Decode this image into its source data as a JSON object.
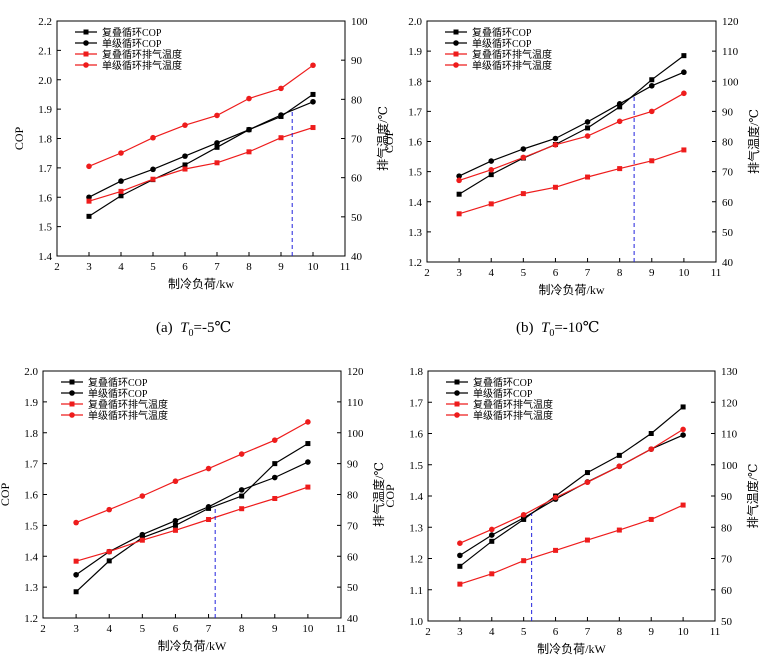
{
  "colors": {
    "black": "#000000",
    "red": "#ee1c1c",
    "guide": "#2222dd"
  },
  "captions": [
    {
      "prefix": "(a)",
      "var": "T",
      "sub": "0",
      "value": "=-5℃"
    },
    {
      "prefix": "(b)",
      "var": "T",
      "sub": "0",
      "value": "=-10℃"
    }
  ],
  "chart_data": [
    {
      "type": "line",
      "xlabel": "制冷负荷/kw",
      "ylabel": "COP",
      "y2label": "排气温度/℃",
      "xlim": [
        2,
        11
      ],
      "ylim": [
        1.4,
        2.2
      ],
      "y2lim": [
        40,
        100
      ],
      "xticks": [
        "2",
        "3",
        "4",
        "5",
        "6",
        "7",
        "8",
        "9",
        "10",
        "11"
      ],
      "yticks": [
        "1.4",
        "1.5",
        "1.6",
        "1.7",
        "1.8",
        "1.9",
        "2.0",
        "2.1",
        "2.2"
      ],
      "y2ticks": [
        "40",
        "50",
        "60",
        "70",
        "80",
        "90",
        "100"
      ],
      "legend_position": "top-left",
      "vline_x": 9.35,
      "x": [
        3,
        4,
        5,
        6,
        7,
        8,
        9,
        10
      ],
      "series": [
        {
          "name": "复叠循环COP",
          "axis": "left",
          "color": "black",
          "marker": "square",
          "values": [
            1.535,
            1.605,
            1.66,
            1.71,
            1.77,
            1.83,
            1.875,
            1.95
          ]
        },
        {
          "name": "单级循环COP",
          "axis": "left",
          "color": "black",
          "marker": "circle",
          "values": [
            1.6,
            1.655,
            1.695,
            1.74,
            1.785,
            1.83,
            1.88,
            1.925
          ]
        },
        {
          "name": "复叠循环排气温度",
          "axis": "right",
          "color": "red",
          "marker": "square",
          "values": [
            54,
            56.5,
            59.6,
            62.2,
            63.8,
            66.6,
            70.2,
            72.8
          ]
        },
        {
          "name": "单级循环排气温度",
          "axis": "right",
          "color": "red",
          "marker": "circle",
          "values": [
            62.9,
            66.3,
            70.2,
            73.4,
            75.9,
            80.2,
            82.8,
            88.7
          ]
        }
      ]
    },
    {
      "type": "line",
      "xlabel": "制冷负荷/kw",
      "ylabel": "COP",
      "y2label": "排气温度/℃",
      "xlim": [
        2,
        11
      ],
      "ylim": [
        1.2,
        2.0
      ],
      "y2lim": [
        40,
        120
      ],
      "xticks": [
        "2",
        "3",
        "4",
        "5",
        "6",
        "7",
        "8",
        "9",
        "10",
        "11"
      ],
      "yticks": [
        "1.2",
        "1.3",
        "1.4",
        "1.5",
        "1.6",
        "1.7",
        "1.8",
        "1.9",
        "2.0"
      ],
      "y2ticks": [
        "40",
        "50",
        "60",
        "70",
        "80",
        "90",
        "100",
        "110",
        "120"
      ],
      "legend_position": "top-left",
      "vline_x": 8.45,
      "x": [
        3,
        4,
        5,
        6,
        7,
        8,
        9,
        10
      ],
      "series": [
        {
          "name": "复叠循环COP",
          "axis": "left",
          "color": "black",
          "marker": "square",
          "values": [
            1.425,
            1.49,
            1.545,
            1.59,
            1.645,
            1.715,
            1.805,
            1.885
          ]
        },
        {
          "name": "单级循环COP",
          "axis": "left",
          "color": "black",
          "marker": "circle",
          "values": [
            1.485,
            1.535,
            1.575,
            1.61,
            1.665,
            1.725,
            1.785,
            1.83
          ]
        },
        {
          "name": "复叠循环排气温度",
          "axis": "right",
          "color": "red",
          "marker": "square",
          "values": [
            56,
            59.3,
            62.7,
            64.8,
            68.2,
            71,
            73.6,
            77.2
          ]
        },
        {
          "name": "单级循环排气温度",
          "axis": "right",
          "color": "red",
          "marker": "circle",
          "values": [
            67.1,
            70.6,
            74.7,
            78.9,
            81.8,
            86.7,
            90,
            96
          ]
        }
      ]
    },
    {
      "type": "line",
      "xlabel": "制冷负荷/kW",
      "ylabel": "COP",
      "y2label": "排气温度/℃",
      "xlim": [
        2,
        11
      ],
      "ylim": [
        1.2,
        2.0
      ],
      "y2lim": [
        40,
        120
      ],
      "xticks": [
        "2",
        "3",
        "4",
        "5",
        "6",
        "7",
        "8",
        "9",
        "10",
        "11"
      ],
      "yticks": [
        "1.2",
        "1.3",
        "1.4",
        "1.5",
        "1.6",
        "1.7",
        "1.8",
        "1.9",
        "2.0"
      ],
      "y2ticks": [
        "40",
        "50",
        "60",
        "70",
        "80",
        "90",
        "100",
        "110",
        "120"
      ],
      "legend_position": "top-left",
      "vline_x": 7.2,
      "x": [
        3,
        4,
        5,
        6,
        7,
        8,
        9,
        10
      ],
      "series": [
        {
          "name": "复叠循环COP",
          "axis": "left",
          "color": "black",
          "marker": "square",
          "values": [
            1.285,
            1.385,
            1.46,
            1.5,
            1.555,
            1.595,
            1.7,
            1.765
          ]
        },
        {
          "name": "单级循环COP",
          "axis": "left",
          "color": "black",
          "marker": "circle",
          "values": [
            1.34,
            1.415,
            1.47,
            1.515,
            1.56,
            1.615,
            1.655,
            1.705
          ]
        },
        {
          "name": "复叠循环排气温度",
          "axis": "right",
          "color": "red",
          "marker": "square",
          "values": [
            58.4,
            61.5,
            65.2,
            68.4,
            71.9,
            75.4,
            78.7,
            82.4
          ]
        },
        {
          "name": "单级循环排气温度",
          "axis": "right",
          "color": "red",
          "marker": "circle",
          "values": [
            70.9,
            75.1,
            79.5,
            84.3,
            88.4,
            93.1,
            97.6,
            103.5
          ]
        }
      ]
    },
    {
      "type": "line",
      "xlabel": "制冷负荷/kW",
      "ylabel": "COP",
      "y2label": "排气温度/℃",
      "xlim": [
        2,
        11
      ],
      "ylim": [
        1.0,
        1.8
      ],
      "y2lim": [
        50,
        130
      ],
      "xticks": [
        "2",
        "3",
        "4",
        "5",
        "6",
        "7",
        "8",
        "9",
        "10",
        "11"
      ],
      "yticks": [
        "1.0",
        "1.1",
        "1.2",
        "1.3",
        "1.4",
        "1.5",
        "1.6",
        "1.7",
        "1.8"
      ],
      "y2ticks": [
        "50",
        "60",
        "70",
        "80",
        "90",
        "100",
        "110",
        "120",
        "130"
      ],
      "legend_position": "top-left",
      "vline_x": 5.25,
      "x": [
        3,
        4,
        5,
        6,
        7,
        8,
        9,
        10
      ],
      "series": [
        {
          "name": "复叠循环COP",
          "axis": "left",
          "color": "black",
          "marker": "square",
          "values": [
            1.175,
            1.255,
            1.325,
            1.4,
            1.475,
            1.53,
            1.6,
            1.685
          ]
        },
        {
          "name": "单级循环COP",
          "axis": "left",
          "color": "black",
          "marker": "circle",
          "values": [
            1.21,
            1.275,
            1.33,
            1.39,
            1.445,
            1.495,
            1.55,
            1.595
          ]
        },
        {
          "name": "复叠循环排气温度",
          "axis": "right",
          "color": "red",
          "marker": "square",
          "values": [
            61.8,
            65.1,
            69.3,
            72.6,
            75.9,
            79.1,
            82.5,
            87.1
          ]
        },
        {
          "name": "单级循环排气温度",
          "axis": "right",
          "color": "red",
          "marker": "circle",
          "values": [
            74.9,
            79.3,
            84,
            89.5,
            94.4,
            99.5,
            105,
            111.3
          ]
        }
      ]
    }
  ]
}
